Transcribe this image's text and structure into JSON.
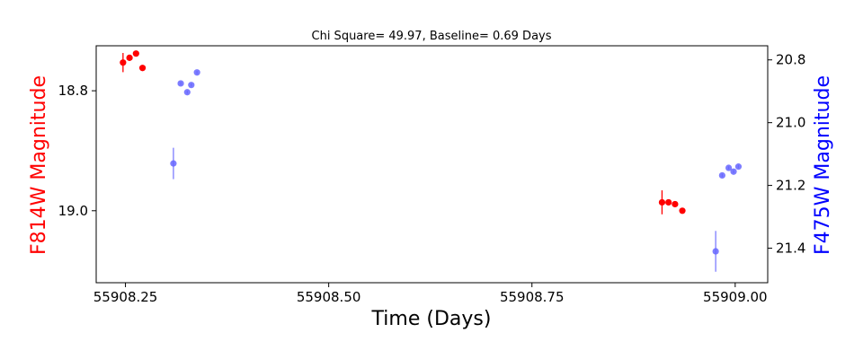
{
  "chart_data": {
    "type": "scatter",
    "title": "Chi Square= 49.97, Baseline= 0.69 Days",
    "xlabel": "Time (Days)",
    "ylabel_left": "F814W Magnitude",
    "ylabel_right": "F475W Magnitude",
    "xlim": [
      55908.214,
      55909.04
    ],
    "ylim_left": [
      18.725,
      19.12
    ],
    "ylim_right": [
      20.755,
      21.51
    ],
    "y_inverted": true,
    "x_ticks": [
      "55908.25",
      "55908.50",
      "55908.75",
      "55909.00"
    ],
    "x_tick_values": [
      55908.25,
      55908.5,
      55908.75,
      55909.0
    ],
    "y_left_ticks": [
      "18.8",
      "19.0"
    ],
    "y_left_tick_values": [
      18.8,
      19.0
    ],
    "y_right_ticks": [
      "20.8",
      "21.0",
      "21.2",
      "21.4"
    ],
    "y_right_tick_values": [
      20.8,
      21.0,
      21.2,
      21.4
    ],
    "grid": false,
    "legend": "none",
    "colors": {
      "left_series": "#ff0000",
      "right_series": "#6666ff",
      "left_label": "#ff0000",
      "right_label": "#0000ff"
    },
    "series": [
      {
        "axis": "left",
        "color": "#ff0000",
        "points": [
          {
            "x": 55908.247,
            "y": 18.753,
            "err": 0.016
          },
          {
            "x": 55908.255,
            "y": 18.745,
            "err": 0.005
          },
          {
            "x": 55908.263,
            "y": 18.738,
            "err": 0.004
          },
          {
            "x": 55908.271,
            "y": 18.762,
            "err": 0.004
          },
          {
            "x": 55908.91,
            "y": 18.986,
            "err": 0.02
          },
          {
            "x": 55908.918,
            "y": 18.986,
            "err": 0.005
          },
          {
            "x": 55908.926,
            "y": 18.989,
            "err": 0.005
          },
          {
            "x": 55908.935,
            "y": 19.0,
            "err": 0.004
          }
        ]
      },
      {
        "axis": "right",
        "color": "#6666ff",
        "points": [
          {
            "x": 55908.309,
            "y": 21.13,
            "err": 0.05
          },
          {
            "x": 55908.318,
            "y": 20.875,
            "err": 0.005
          },
          {
            "x": 55908.326,
            "y": 20.903,
            "err": 0.005
          },
          {
            "x": 55908.331,
            "y": 20.88,
            "err": 0.005
          },
          {
            "x": 55908.338,
            "y": 20.84,
            "err": 0.005
          },
          {
            "x": 55908.976,
            "y": 21.41,
            "err": 0.065
          },
          {
            "x": 55908.984,
            "y": 21.168,
            "err": 0.005
          },
          {
            "x": 55908.992,
            "y": 21.144,
            "err": 0.005
          },
          {
            "x": 55908.998,
            "y": 21.156,
            "err": 0.005
          },
          {
            "x": 55909.004,
            "y": 21.14,
            "err": 0.005
          }
        ]
      }
    ]
  }
}
